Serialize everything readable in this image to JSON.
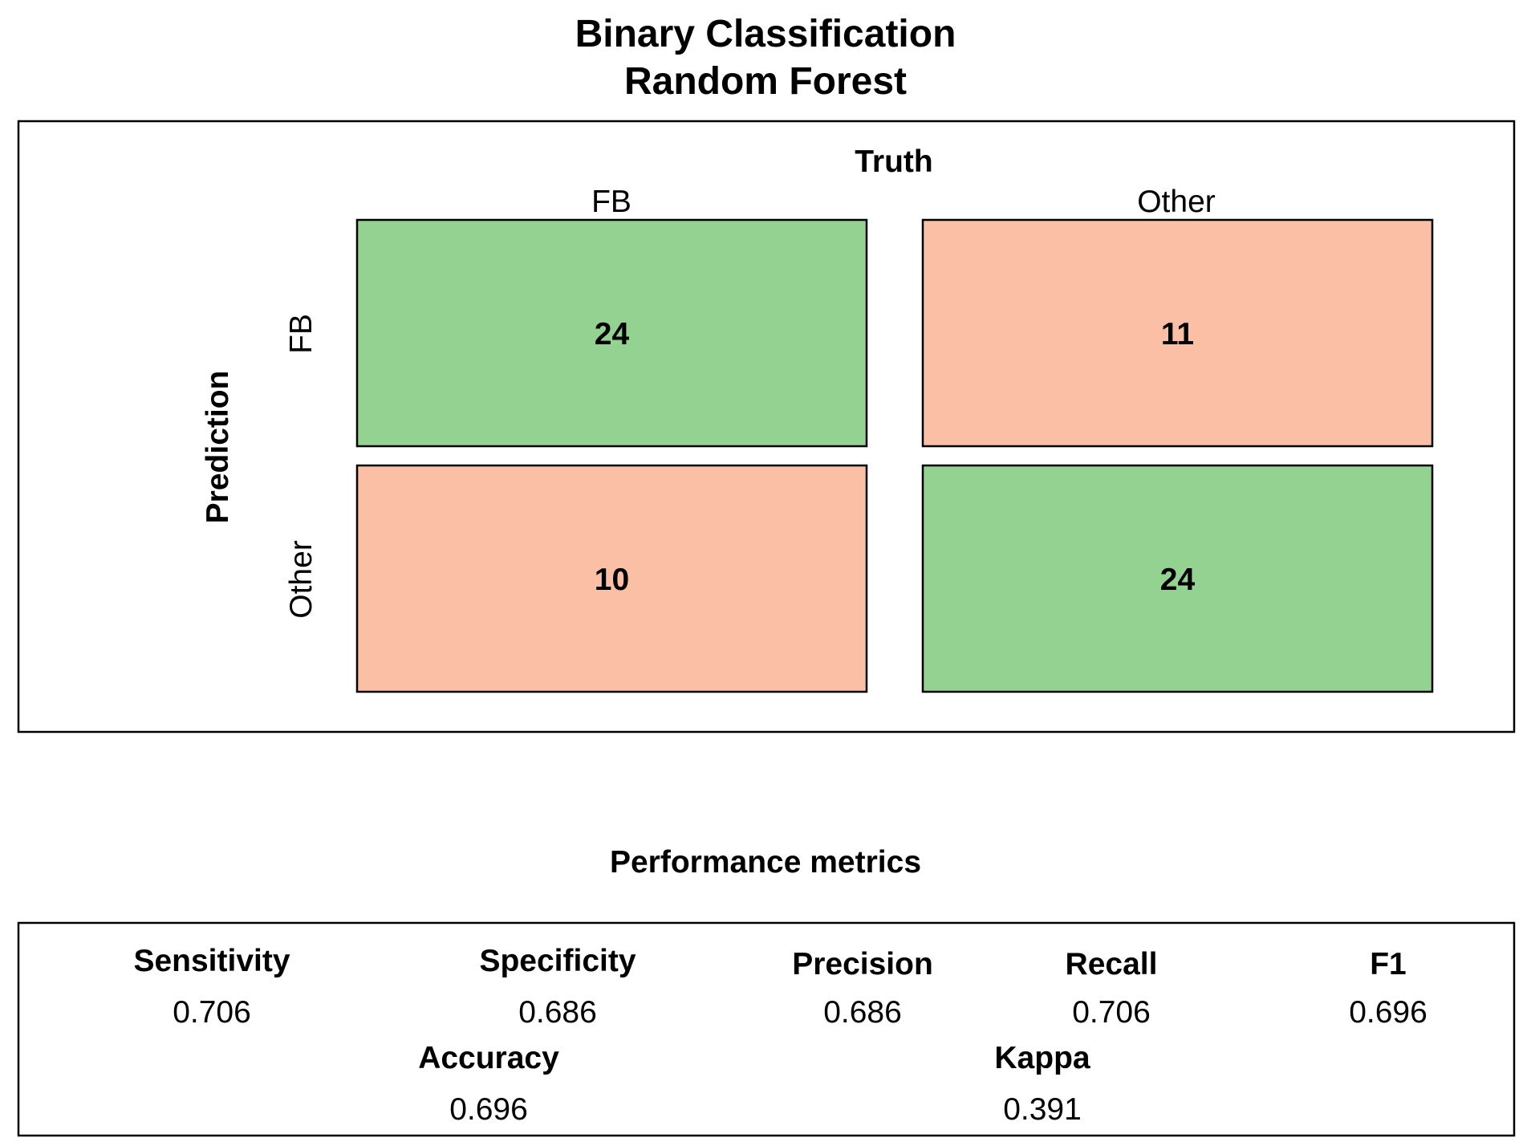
{
  "chart_data": {
    "type": "heatmap",
    "title_lines": [
      "Binary Classification",
      "Random Forest"
    ],
    "x_axis_label": "Truth",
    "y_axis_label": "Prediction",
    "columns": [
      "FB",
      "Other"
    ],
    "rows": [
      "FB",
      "Other"
    ],
    "matrix": [
      [
        24,
        11
      ],
      [
        10,
        24
      ]
    ],
    "colors": {
      "correct": "#93d291",
      "incorrect": "#fbbfa5",
      "border": "#000000"
    },
    "metrics_title": "Performance metrics",
    "metrics": [
      {
        "name": "Sensitivity",
        "value": "0.706"
      },
      {
        "name": "Specificity",
        "value": "0.686"
      },
      {
        "name": "Precision",
        "value": "0.686"
      },
      {
        "name": "Recall",
        "value": "0.706"
      },
      {
        "name": "F1",
        "value": "0.696"
      },
      {
        "name": "Accuracy",
        "value": "0.696"
      },
      {
        "name": "Kappa",
        "value": "0.391"
      }
    ]
  }
}
